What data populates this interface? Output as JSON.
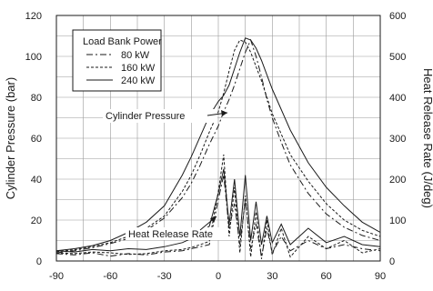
{
  "chart_data": {
    "type": "line",
    "x": [
      -90,
      -80,
      -70,
      -60,
      -50,
      -40,
      -30,
      -20,
      -15,
      -10,
      -5,
      0,
      3,
      6,
      9,
      12,
      15,
      18,
      21,
      24,
      27,
      30,
      35,
      40,
      50,
      60,
      70,
      80,
      90
    ],
    "xlim": [
      -90,
      90
    ],
    "xticks": [
      "-90",
      "-60",
      "-30",
      "0",
      "30",
      "60",
      "90"
    ],
    "ylabel": "Cylinder Pressure (bar)",
    "ylim": [
      0,
      120
    ],
    "yticks": [
      "0",
      "20",
      "40",
      "60",
      "80",
      "100",
      "120"
    ],
    "y2label": "Heat Release Rate (J/deg)",
    "y2lim": [
      0,
      600
    ],
    "y2ticks": [
      "0",
      "100",
      "200",
      "300",
      "400",
      "500",
      "600"
    ],
    "grid": true,
    "legend": {
      "title": "Load Bank Power",
      "position": "top-left",
      "entries": [
        "80 kW",
        "160 kW",
        "240 kW"
      ]
    },
    "annotations": {
      "pressure": "Cylinder Pressure",
      "heat": "Heat Release Rate"
    },
    "pressure_series": [
      {
        "name": "80 kW",
        "style": "dash-dot",
        "values": [
          4,
          5,
          6.5,
          8.5,
          11,
          15,
          21,
          31,
          38,
          47,
          57,
          66,
          73,
          79,
          86,
          94,
          102,
          108,
          100,
          90,
          79,
          70,
          58,
          47,
          33,
          23,
          16.5,
          12.5,
          10
        ]
      },
      {
        "name": "160 kW",
        "style": "dashed",
        "values": [
          4.5,
          5.5,
          7,
          9,
          12,
          16,
          22,
          34,
          42,
          52,
          63,
          73,
          82,
          93,
          103,
          108,
          107,
          102,
          95,
          88,
          80,
          72,
          62,
          52,
          39,
          28,
          20,
          15,
          12
        ]
      },
      {
        "name": "240 kW",
        "style": "solid",
        "values": [
          5,
          6,
          7.5,
          10,
          14,
          19,
          27,
          42,
          51,
          61,
          71,
          78,
          81,
          86,
          94,
          102,
          109,
          108,
          104,
          98,
          91,
          84,
          74,
          64,
          48,
          36,
          27,
          19,
          14
        ]
      }
    ],
    "heat_release_series": [
      {
        "name": "80 kW",
        "style": "dash-dot",
        "values": [
          18,
          15,
          20,
          12,
          18,
          15,
          22,
          25,
          30,
          35,
          40,
          150,
          210,
          80,
          140,
          40,
          150,
          30,
          90,
          10,
          80,
          20,
          60,
          25,
          50,
          30,
          40,
          30,
          25
        ]
      },
      {
        "name": "160 kW",
        "style": "dashed",
        "values": [
          20,
          18,
          22,
          20,
          16,
          18,
          25,
          28,
          33,
          40,
          48,
          170,
          260,
          60,
          180,
          20,
          160,
          10,
          120,
          5,
          100,
          15,
          80,
          10,
          60,
          30,
          50,
          20,
          30
        ]
      },
      {
        "name": "240 kW",
        "style": "solid",
        "values": [
          25,
          22,
          28,
          25,
          30,
          28,
          35,
          45,
          55,
          70,
          85,
          165,
          225,
          90,
          200,
          60,
          210,
          50,
          145,
          40,
          110,
          45,
          90,
          40,
          80,
          45,
          60,
          40,
          35
        ]
      }
    ]
  }
}
